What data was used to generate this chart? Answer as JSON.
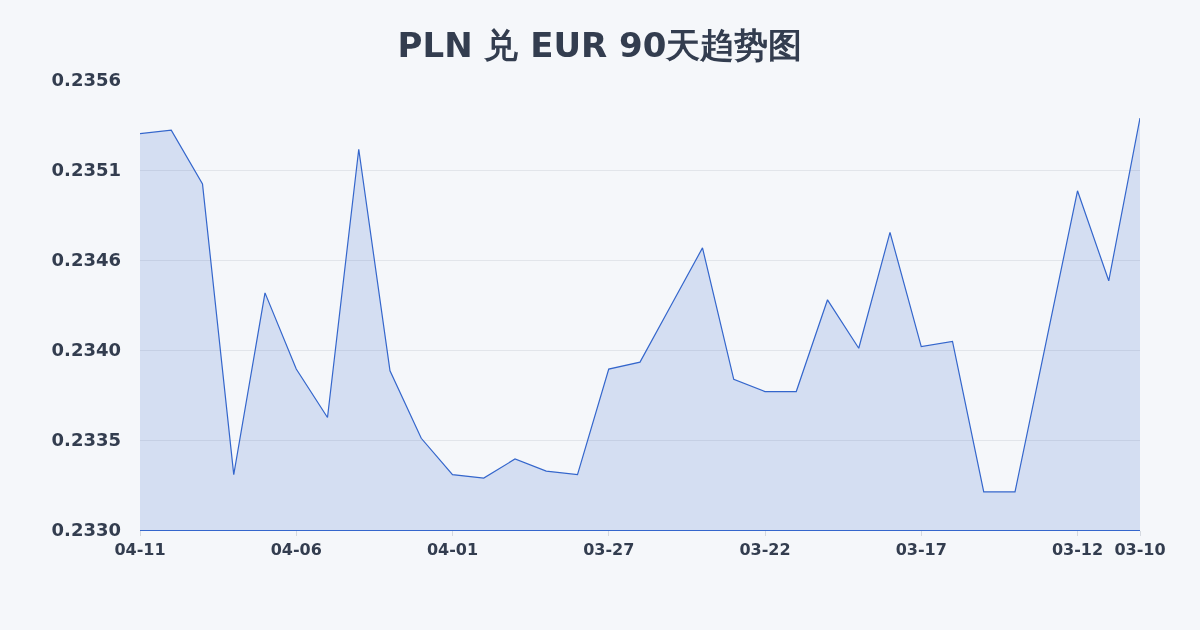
{
  "chart_data": {
    "type": "area",
    "title": "PLN 兑 EUR 90天趋势图",
    "categories": [
      "04-11",
      null,
      null,
      null,
      null,
      "04-06",
      null,
      null,
      null,
      null,
      "04-01",
      null,
      null,
      null,
      null,
      "03-27",
      null,
      null,
      null,
      null,
      "03-22",
      null,
      null,
      null,
      null,
      "03-17",
      null,
      null,
      null,
      null,
      "03-12",
      null,
      "03-10"
    ],
    "series": [
      {
        "color": "#3466cc",
        "values": [
          0.23529,
          0.23531,
          0.235,
          0.23332,
          0.23437,
          0.23393,
          0.23365,
          0.2352,
          0.23392,
          0.23353,
          0.23332,
          0.2333,
          0.23341,
          0.23334,
          0.23332,
          0.23393,
          0.23397,
          0.2343,
          0.23463,
          0.23387,
          0.2338,
          0.2338,
          0.23433,
          0.23405,
          0.23472,
          0.23406,
          0.23409,
          0.23322,
          0.23322,
          0.23409,
          0.23496,
          0.23444,
          0.23538
        ]
      }
    ],
    "ylim": [
      0.233,
      0.2356
    ],
    "yticks": [
      {
        "value": 0.233,
        "label": "0.2330"
      },
      {
        "value": 0.23352,
        "label": "0.2335"
      },
      {
        "value": 0.23404,
        "label": "0.2340"
      },
      {
        "value": 0.23456,
        "label": "0.2346"
      },
      {
        "value": 0.23508,
        "label": "0.2351"
      },
      {
        "value": 0.2356,
        "label": "0.2356"
      }
    ],
    "grid": "y"
  }
}
